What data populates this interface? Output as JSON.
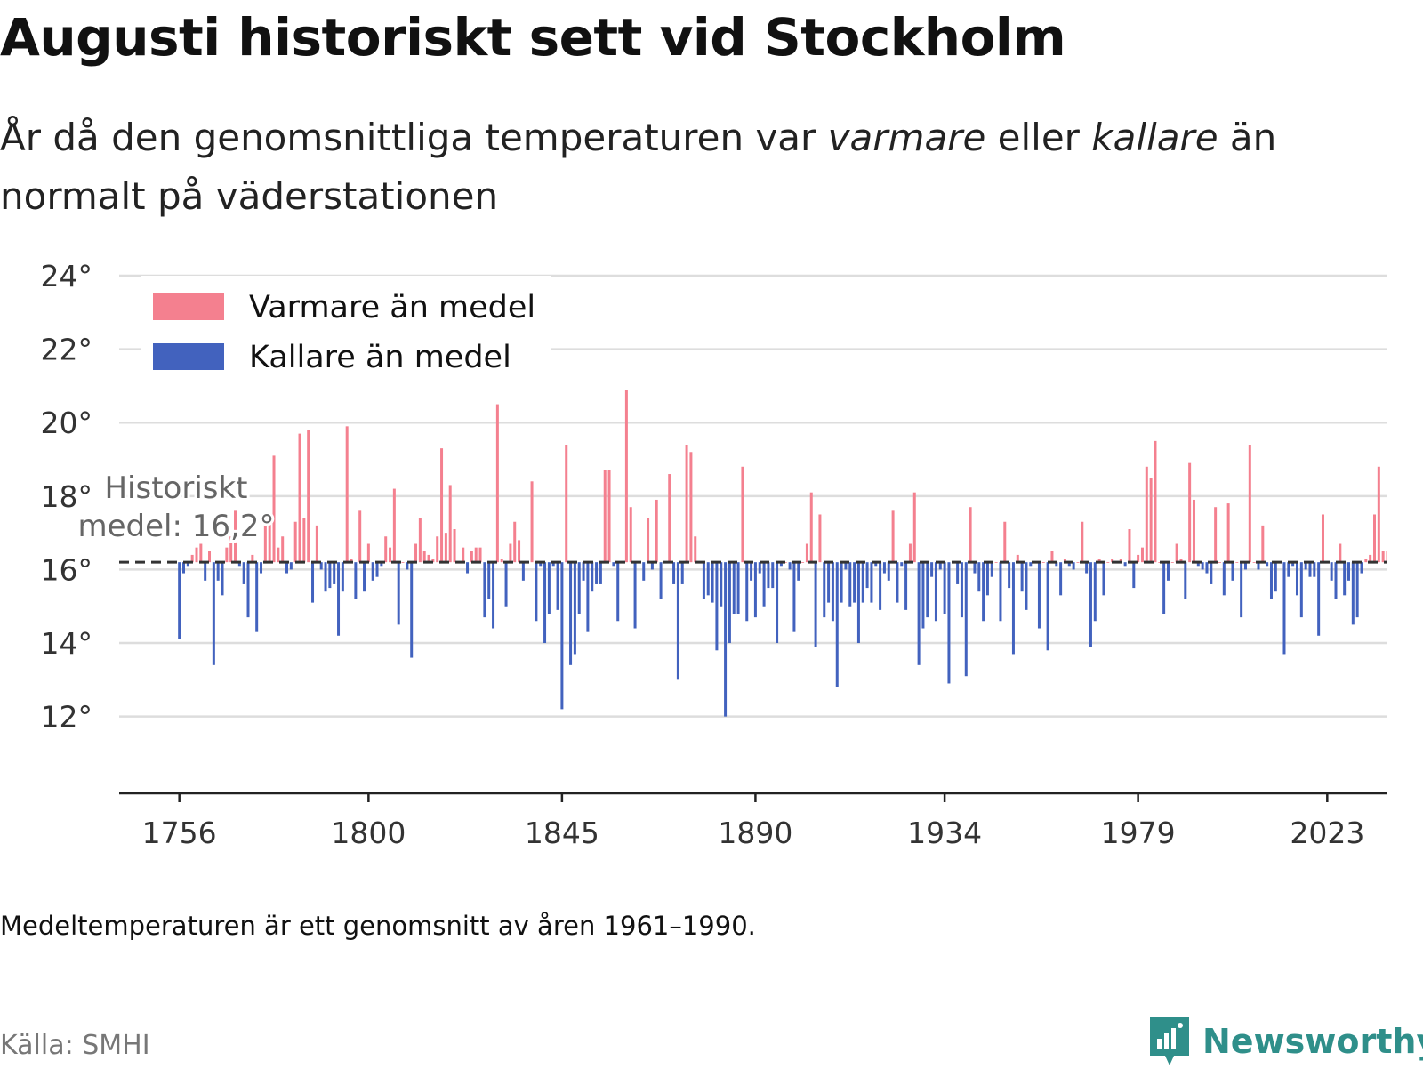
{
  "header": {
    "title": "Augusti historiskt sett vid Stockholm",
    "subtitle_part1": "År då den genomsnittliga temperaturen var ",
    "subtitle_warm": "varmare",
    "subtitle_part2": " eller ",
    "subtitle_cold": "kallare",
    "subtitle_part3": " än normalt på väderstationen"
  },
  "footer": {
    "note": "Medeltemperaturen är ett genomsnitt av åren 1961–1990.",
    "source": "Källa: SMHI",
    "brand": "Newsworthy",
    "brand_icon": "newsworthy-logo-icon",
    "brand_color": "#2f8f8a"
  },
  "chart_data": {
    "type": "bar",
    "title": "Augusti historiskt sett vid Stockholm",
    "baseline": 16.2,
    "baseline_label_line1": "Historiskt",
    "baseline_label_line2": "medel: 16,2°",
    "ylim": [
      10.2,
      24
    ],
    "yticks": [
      12,
      14,
      16,
      18,
      20,
      22,
      24
    ],
    "ytick_labels": [
      "12°",
      "14°",
      "16°",
      "18°",
      "20°",
      "22°",
      "24°"
    ],
    "xlim": [
      1742,
      2037
    ],
    "xticks": [
      1756,
      1800,
      1845,
      1890,
      1934,
      1979,
      2023
    ],
    "xtick_labels": [
      "1756",
      "1800",
      "1845",
      "1890",
      "1934",
      "1979",
      "2023"
    ],
    "grid": true,
    "legend_position": "top-left",
    "series": [
      {
        "name": "Varmare än medel",
        "color": "#f4808f"
      },
      {
        "name": "Kallare än medel",
        "color": "#4262be"
      }
    ],
    "year_start": 1756,
    "values": [
      14.1,
      15.9,
      16.1,
      16.4,
      16.6,
      16.7,
      15.7,
      16.5,
      13.4,
      15.7,
      15.3,
      16.6,
      16.9,
      17.6,
      16.1,
      15.6,
      14.7,
      16.4,
      14.3,
      15.9,
      17.5,
      17.3,
      19.1,
      16.6,
      16.9,
      15.9,
      16.0,
      17.3,
      19.7,
      17.4,
      19.8,
      15.1,
      17.2,
      16.0,
      15.4,
      15.5,
      15.6,
      14.2,
      15.4,
      19.9,
      16.3,
      15.2,
      17.6,
      15.4,
      16.7,
      15.7,
      15.8,
      16.1,
      16.9,
      16.6,
      18.2,
      14.5,
      16.2,
      16.0,
      13.6,
      16.7,
      17.4,
      16.5,
      16.4,
      16.3,
      16.9,
      19.3,
      17.0,
      18.3,
      17.1,
      16.2,
      16.6,
      15.9,
      16.5,
      16.6,
      16.6,
      14.7,
      15.2,
      14.4,
      20.5,
      16.3,
      15.0,
      16.7,
      17.3,
      16.8,
      15.7,
      16.2,
      18.4,
      14.6,
      16.1,
      14.0,
      14.8,
      16.1,
      14.9,
      12.2,
      19.4,
      13.4,
      13.7,
      14.8,
      15.7,
      14.3,
      15.4,
      15.6,
      15.6,
      18.7,
      18.7,
      16.1,
      14.6,
      16.2,
      20.9,
      17.7,
      14.4,
      16.2,
      15.7,
      17.4,
      16.0,
      17.9,
      15.2,
      16.2,
      18.6,
      15.6,
      13.0,
      15.6,
      19.4,
      19.2,
      16.9,
      16.2,
      15.2,
      15.3,
      15.1,
      13.8,
      15.0,
      12.0,
      14.0,
      14.8,
      14.8,
      18.8,
      14.6,
      15.7,
      14.7,
      15.9,
      15.0,
      15.5,
      15.5,
      14.0,
      16.1,
      16.2,
      16.0,
      14.3,
      15.7,
      16.2,
      16.7,
      18.1,
      13.9,
      17.5,
      14.7,
      15.1,
      14.6,
      12.8,
      15.1,
      16.0,
      15.0,
      15.1,
      14.0,
      15.1,
      15.5,
      15.1,
      16.1,
      14.9,
      15.9,
      15.7,
      17.6,
      15.1,
      16.1,
      14.9,
      16.7,
      18.1,
      13.4,
      14.4,
      14.7,
      15.8,
      14.6,
      16.0,
      14.8,
      12.9,
      16.2,
      15.6,
      14.7,
      13.1,
      17.7,
      15.9,
      15.4,
      14.6,
      15.3,
      15.8,
      16.2,
      14.6,
      17.3,
      15.5,
      13.7,
      16.4,
      15.4,
      14.9,
      16.1,
      16.2,
      14.4,
      16.2,
      13.8,
      16.5,
      16.1,
      15.3,
      16.3,
      16.1,
      16.0,
      16.2,
      17.3,
      15.9,
      13.9,
      14.6,
      16.3,
      15.3,
      16.2,
      16.3,
      16.2,
      16.3,
      16.1,
      17.1,
      15.5,
      16.4,
      16.6,
      18.8,
      18.5,
      19.5,
      16.2,
      14.8,
      15.7,
      16.2,
      16.7,
      16.3,
      15.2,
      18.9,
      17.9,
      16.1,
      16.0,
      15.9,
      15.6,
      17.7,
      16.2,
      15.3,
      17.8,
      15.7,
      16.2,
      14.7,
      16.0,
      19.4,
      16.2,
      16.0,
      17.2,
      16.1,
      15.2,
      15.4,
      16.2,
      13.7,
      15.8,
      16.1,
      15.3,
      14.7,
      16.0,
      15.8,
      15.8,
      14.2,
      17.5,
      16.2,
      15.7,
      15.2,
      16.7,
      15.3,
      15.7,
      14.5,
      14.7,
      15.9,
      16.3,
      16.4,
      17.5,
      18.8,
      16.5,
      16.5,
      15.7,
      16.4,
      16.7,
      16.4,
      15.9,
      15.3,
      16.2,
      15.9,
      17.1,
      15.9,
      14.4,
      15.2,
      14.8,
      16.2,
      16.7,
      16.7,
      17.7,
      17.3,
      16.4,
      15.4,
      19.7,
      16.1,
      16.4,
      17.3,
      16.1,
      18.0,
      17.5,
      16.2,
      16.4,
      16.7,
      16.2,
      17.4,
      15.4,
      14.9,
      16.1,
      16.2,
      16.2,
      16.4,
      15.1,
      16.5,
      15.6,
      15.5,
      16.7,
      17.3,
      15.9,
      16.0,
      15.9,
      17.4,
      16.0,
      17.5,
      16.9,
      16.7,
      16.0,
      18.4,
      17.8,
      16.6,
      16.5,
      19.8,
      16.0,
      16.1,
      16.5,
      20.6,
      16.6,
      18.2,
      16.4,
      19.1,
      16.3,
      16.6,
      16.9,
      16.5,
      17.3,
      16.7,
      18.0,
      17.0,
      16.9,
      19.4,
      17.6,
      16.5,
      18.0,
      16.5,
      17.8,
      17.5,
      16.2,
      16.4,
      16.9,
      18.3,
      17.3,
      16.0,
      16.1,
      16.2,
      16.7,
      16.9,
      17.8,
      17.1,
      16.6,
      16.3,
      16.5,
      16.3,
      16.1,
      16.8,
      16.9,
      16.2,
      16.3,
      17.5,
      16.8,
      19.6,
      15.8,
      16.2,
      17.2,
      18.1,
      17.0,
      16.8,
      15.5,
      16.1,
      16.8,
      17.0,
      16.2,
      16.5,
      16.7,
      17.0,
      17.2,
      16.8,
      16.3,
      16.6,
      16.0,
      15.9,
      16.8,
      16.6,
      16.4,
      16.9,
      19.8,
      16.9,
      17.4,
      16.2,
      16.9,
      19.1,
      16.2,
      16.6,
      17.8,
      17.9,
      16.4,
      15.5,
      16.7,
      17.0,
      16.2,
      16.6,
      15.8,
      16.7,
      16.8,
      16.1,
      15.2,
      16.4,
      18.6,
      16.8,
      16.2,
      17.0,
      18.1,
      16.2,
      16.3,
      17.0,
      16.5,
      17.0,
      16.3,
      16.6,
      15.8,
      16.3,
      15.2,
      15.6,
      16.3,
      16.7,
      17.1,
      16.8,
      16.2,
      16.0,
      16.7,
      17.2,
      16.4,
      16.8,
      17.0,
      16.8,
      16.2,
      15.8,
      16.5,
      16.1,
      16.9,
      17.0,
      16.4,
      17.5,
      16.3,
      16.4,
      16.0,
      16.6,
      16.3,
      17.8,
      16.0,
      16.3,
      16.5,
      15.7,
      16.2,
      16.1,
      16.6,
      16.7,
      16.3,
      17.0,
      16.1,
      16.4,
      15.6,
      17.4,
      16.4,
      16.7,
      16.3,
      16.6,
      16.6,
      16.5,
      16.8,
      16.6
    ]
  }
}
